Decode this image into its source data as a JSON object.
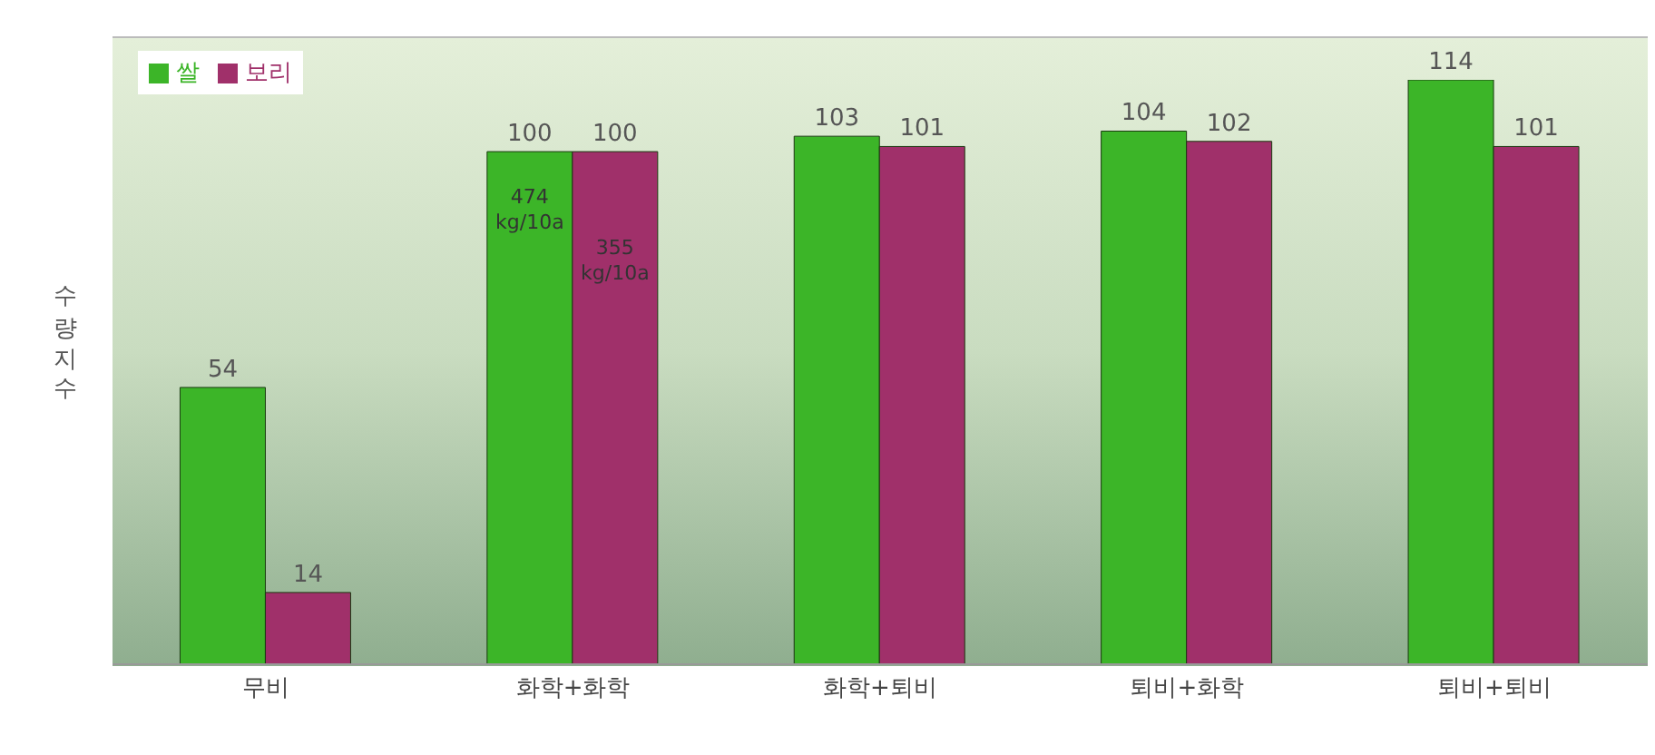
{
  "chart_data": {
    "type": "bar",
    "ylabel": "수량지수",
    "legend": "top left",
    "data_labels": true,
    "categories": [
      "무비",
      "화학+화학",
      "화학+퇴비",
      "퇴비+화학",
      "퇴비+퇴비"
    ],
    "series": [
      {
        "name": "쌀",
        "color": "#3cb528",
        "values": [
          54,
          100,
          103,
          104,
          114
        ]
      },
      {
        "name": "보리",
        "color": "#a0306a",
        "values": [
          14,
          100,
          101,
          102,
          101
        ]
      }
    ],
    "annotations": [
      {
        "text": "474 kg/10a",
        "x": "화학+화학",
        "y": 90
      },
      {
        "text": "355 kg/10a",
        "x": "화학+화학",
        "y": 80
      }
    ]
  }
}
